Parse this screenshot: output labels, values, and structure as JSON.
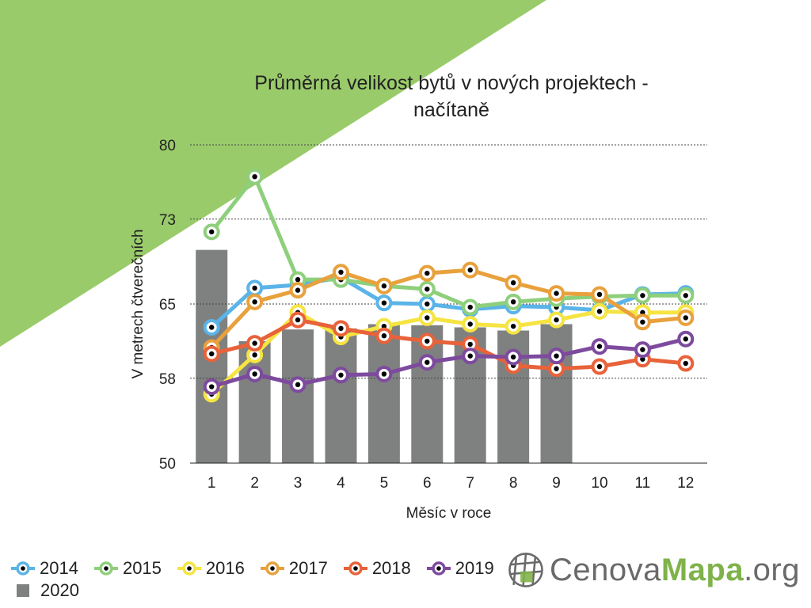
{
  "title": "Průměrná velikost bytů v nových projektech - načítaně",
  "title_lines": [
    "Průměrná velikost bytů v nových projektech -",
    "načítaně"
  ],
  "colors": {
    "background_accent": "#9acb6a",
    "bars": "#7f8180",
    "gridline": "#444444"
  },
  "chart_data": {
    "type": "line",
    "title": "Průměrná velikost bytů v nových projektech - načítaně",
    "xlabel": "Měsíc v roce",
    "ylabel": "V metrech čtverečních",
    "ylim": [
      50,
      80
    ],
    "yticks": [
      50,
      58,
      65,
      73,
      80
    ],
    "categories": [
      "1",
      "2",
      "3",
      "4",
      "5",
      "6",
      "7",
      "8",
      "9",
      "10",
      "11",
      "12"
    ],
    "grid": true,
    "legend_position": "bottom-left",
    "bar_series": {
      "name": "2020",
      "color": "#7f8180",
      "values": [
        70.1,
        61.5,
        62.6,
        62.7,
        63.1,
        63.0,
        62.8,
        62.5,
        63.1,
        null,
        null,
        null
      ]
    },
    "series": [
      {
        "name": "2014",
        "color": "#5ab4e8",
        "values": [
          62.8,
          66.5,
          66.8,
          67.5,
          65.1,
          65.0,
          64.5,
          64.8,
          64.7,
          64.4,
          65.9,
          66.0
        ]
      },
      {
        "name": "2015",
        "color": "#8ecf7c",
        "values": [
          71.8,
          77.0,
          67.3,
          67.3,
          66.7,
          66.4,
          64.7,
          65.2,
          65.5,
          65.7,
          65.8,
          65.8
        ]
      },
      {
        "name": "2016",
        "color": "#f5e442",
        "values": [
          56.5,
          60.2,
          64.2,
          61.9,
          62.9,
          63.7,
          63.1,
          62.9,
          63.5,
          64.3,
          64.2,
          64.2
        ]
      },
      {
        "name": "2017",
        "color": "#e8a13c",
        "values": [
          60.9,
          65.2,
          66.3,
          68.0,
          66.7,
          67.9,
          68.2,
          67.0,
          66.0,
          65.9,
          63.3,
          63.7
        ]
      },
      {
        "name": "2018",
        "color": "#e8623a",
        "values": [
          60.3,
          61.3,
          63.5,
          62.7,
          62.0,
          61.5,
          61.2,
          59.2,
          58.9,
          59.1,
          59.8,
          59.4
        ]
      },
      {
        "name": "2019",
        "color": "#7d4a9e",
        "values": [
          57.2,
          58.4,
          57.4,
          58.3,
          58.4,
          59.5,
          60.1,
          60.0,
          60.1,
          61.0,
          60.7,
          61.7
        ]
      }
    ]
  },
  "legend": [
    {
      "label": "2014",
      "color": "#5ab4e8"
    },
    {
      "label": "2015",
      "color": "#8ecf7c"
    },
    {
      "label": "2016",
      "color": "#f5e442"
    },
    {
      "label": "2017",
      "color": "#e8a13c"
    },
    {
      "label": "2018",
      "color": "#e8623a"
    },
    {
      "label": "2019",
      "color": "#7d4a9e"
    }
  ],
  "legend_bar": {
    "label": "2020",
    "color": "#7f8180"
  },
  "logo": {
    "part1": "Cenova",
    "part2": "Mapa",
    "part3": ".org",
    "icon": "globe-grid-icon"
  }
}
